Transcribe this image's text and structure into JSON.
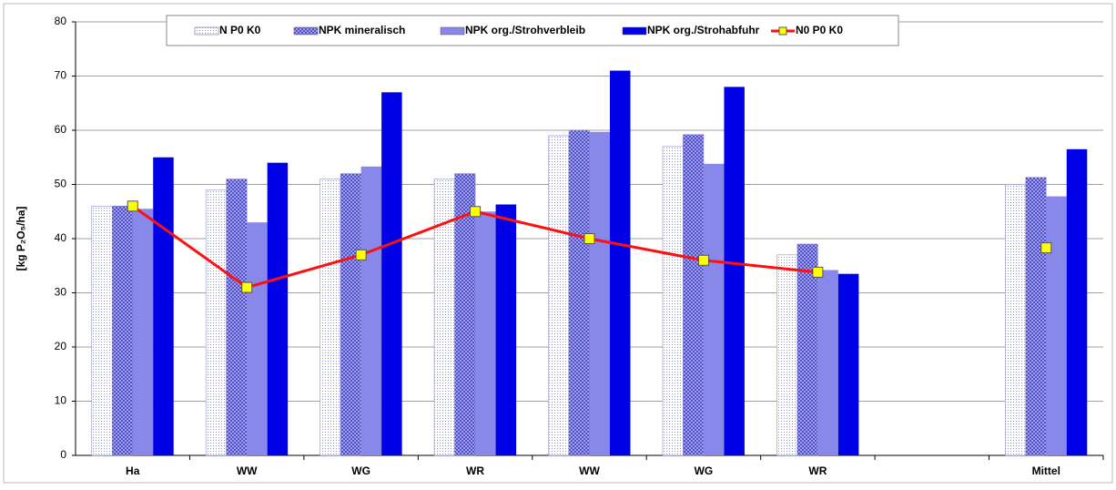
{
  "chart_data": {
    "type": "bar",
    "y_label": "[kg P₂O₅/ha]",
    "categories": [
      "Ha",
      "WW",
      "WG",
      "WR",
      "WW",
      "WG",
      "WR",
      null,
      "Mittel"
    ],
    "series": [
      {
        "name": "N P0 K0",
        "color": "#c8c8f0",
        "pattern": "dots",
        "values": [
          46,
          49,
          51,
          51,
          59,
          57,
          37,
          null,
          50
        ]
      },
      {
        "name": "NPK mineralisch",
        "color": "#7070e0",
        "pattern": "crosshatch",
        "values": [
          46,
          51,
          52,
          52,
          60,
          59.2,
          39,
          null,
          51.3
        ]
      },
      {
        "name": "NPK org./Strohverbleib",
        "color": "#8888ea",
        "values": [
          45.5,
          43,
          53.3,
          45,
          59.7,
          53.8,
          34.2,
          null,
          47.8
        ]
      },
      {
        "name": "NPK org./Strohabfuhr",
        "color": "#0000e6",
        "values": [
          55,
          54,
          67,
          46.3,
          71,
          68,
          33.5,
          null,
          56.5
        ]
      },
      {
        "name": "N0 P0 K0",
        "type": "line",
        "color": "#ff1010",
        "marker_color": "#ffff00",
        "values": [
          46,
          31,
          37,
          45,
          40,
          36,
          33.8,
          null,
          38.3
        ]
      }
    ],
    "ylim": [
      0,
      80
    ],
    "yticks": [
      0,
      10,
      20,
      30,
      40,
      50,
      60,
      70,
      80
    ],
    "grid": true
  }
}
